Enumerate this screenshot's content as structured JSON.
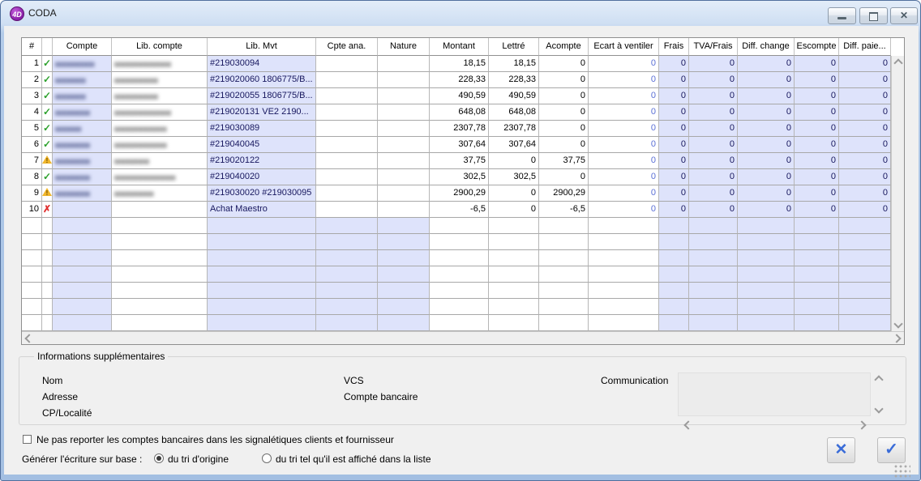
{
  "window": {
    "title": "CODA",
    "app_icon_label": "4D"
  },
  "table": {
    "headers": [
      "#",
      "",
      "Compte",
      "Lib. compte",
      "Lib. Mvt",
      "Cpte ana.",
      "Nature",
      "Montant",
      "Lettré",
      "Acompte",
      "Ecart à ventiler",
      "Frais",
      "TVA/Frais",
      "Diff. change",
      "Escompte",
      "Diff. paie..."
    ],
    "rows": [
      {
        "num": "1",
        "status": "ok",
        "compte_blur": "▆▆▆▆▆▆▆▆▆",
        "lib_compte_blur": "▆▆▆▆▆▆▆▆▆▆▆▆▆",
        "lib_mvt": "#219030094",
        "montant": "18,15",
        "lettre": "18,15",
        "acompte": "0",
        "ecart": "0",
        "frais": "0",
        "tva_frais": "0",
        "diff_change": "0",
        "escompte": "0",
        "diff_paie": "0"
      },
      {
        "num": "2",
        "status": "ok",
        "compte_blur": "▆▆▆▆▆▆▆",
        "lib_compte_blur": "▆▆▆▆▆▆▆▆▆▆",
        "lib_mvt": "#219020060 1806775/B...",
        "montant": "228,33",
        "lettre": "228,33",
        "acompte": "0",
        "ecart": "0",
        "frais": "0",
        "tva_frais": "0",
        "diff_change": "0",
        "escompte": "0",
        "diff_paie": "0"
      },
      {
        "num": "3",
        "status": "ok",
        "compte_blur": "▆▆▆▆▆▆▆",
        "lib_compte_blur": "▆▆▆▆▆▆▆▆▆▆",
        "lib_mvt": "#219020055 1806775/B...",
        "montant": "490,59",
        "lettre": "490,59",
        "acompte": "0",
        "ecart": "0",
        "frais": "0",
        "tva_frais": "0",
        "diff_change": "0",
        "escompte": "0",
        "diff_paie": "0"
      },
      {
        "num": "4",
        "status": "ok",
        "compte_blur": "▆▆▆▆▆▆▆▆",
        "lib_compte_blur": "▆▆▆▆▆▆▆▆▆▆▆▆▆",
        "lib_mvt": "#219020131  VE2 2190...",
        "montant": "648,08",
        "lettre": "648,08",
        "acompte": "0",
        "ecart": "0",
        "frais": "0",
        "tva_frais": "0",
        "diff_change": "0",
        "escompte": "0",
        "diff_paie": "0"
      },
      {
        "num": "5",
        "status": "ok",
        "compte_blur": "▆▆▆▆▆▆",
        "lib_compte_blur": "▆▆▆▆▆▆▆▆▆▆▆▆",
        "lib_mvt": "#219030089",
        "montant": "2307,78",
        "lettre": "2307,78",
        "acompte": "0",
        "ecart": "0",
        "frais": "0",
        "tva_frais": "0",
        "diff_change": "0",
        "escompte": "0",
        "diff_paie": "0"
      },
      {
        "num": "6",
        "status": "ok",
        "compte_blur": "▆▆▆▆▆▆▆▆",
        "lib_compte_blur": "▆▆▆▆▆▆▆▆▆▆▆▆",
        "lib_mvt": "#219040045",
        "montant": "307,64",
        "lettre": "307,64",
        "acompte": "0",
        "ecart": "0",
        "frais": "0",
        "tva_frais": "0",
        "diff_change": "0",
        "escompte": "0",
        "diff_paie": "0"
      },
      {
        "num": "7",
        "status": "warning",
        "compte_blur": "▆▆▆▆▆▆▆▆",
        "lib_compte_blur": "▆▆▆▆▆▆▆▆",
        "lib_mvt": "#219020122",
        "montant": "37,75",
        "lettre": "0",
        "acompte": "37,75",
        "ecart": "0",
        "frais": "0",
        "tva_frais": "0",
        "diff_change": "0",
        "escompte": "0",
        "diff_paie": "0"
      },
      {
        "num": "8",
        "status": "ok",
        "compte_blur": "▆▆▆▆▆▆▆▆",
        "lib_compte_blur": "▆▆▆▆▆▆▆▆▆▆▆▆▆▆",
        "lib_mvt": "#219040020",
        "montant": "302,5",
        "lettre": "302,5",
        "acompte": "0",
        "ecart": "0",
        "frais": "0",
        "tva_frais": "0",
        "diff_change": "0",
        "escompte": "0",
        "diff_paie": "0"
      },
      {
        "num": "9",
        "status": "warning",
        "compte_blur": "▆▆▆▆▆▆▆▆",
        "lib_compte_blur": "▆▆▆▆▆▆▆▆▆",
        "lib_mvt": "#219030020 #219030095",
        "montant": "2900,29",
        "lettre": "0",
        "acompte": "2900,29",
        "ecart": "0",
        "frais": "0",
        "tva_frais": "0",
        "diff_change": "0",
        "escompte": "0",
        "diff_paie": "0"
      },
      {
        "num": "10",
        "status": "error",
        "compte_blur": "",
        "lib_compte_blur": "",
        "lib_mvt": "Achat Maestro",
        "montant": "-6,5",
        "lettre": "0",
        "acompte": "-6,5",
        "ecart": "0",
        "frais": "0",
        "tva_frais": "0",
        "diff_change": "0",
        "escompte": "0",
        "diff_paie": "0"
      }
    ],
    "empty_row_count": 7
  },
  "info_panel": {
    "legend": "Informations supplémentaires",
    "labels": {
      "nom": "Nom",
      "adresse": "Adresse",
      "cp_localite": "CP/Localité",
      "vcs": "VCS",
      "compte_bancaire": "Compte bancaire",
      "communication": "Communication"
    },
    "communication_value": ""
  },
  "footer": {
    "checkbox_label": "Ne pas reporter les comptes bancaires dans les signalétiques clients et fournisseur",
    "checkbox_checked": false,
    "generate_label": "Générer l'écriture sur base :",
    "radios": [
      {
        "label": "du tri d'origine",
        "selected": true
      },
      {
        "label": "du tri tel qu'il est affiché dans la liste",
        "selected": false
      }
    ]
  },
  "icons": {
    "status_ok": "green-check",
    "status_warning": "yellow-warning-triangle",
    "status_error": "red-x",
    "cancel_button": "blue-x-mark",
    "validate_button": "blue-check-mark"
  },
  "colors": {
    "lavender_cell": "#dee3fb",
    "ecart_blue_text": "#5a6fd6",
    "navy_text": "#17175e",
    "ok_green": "#2da12d",
    "warn_yellow": "#f0b62c",
    "error_red": "#e03030",
    "action_glyph_blue": "#3a6cd8"
  }
}
